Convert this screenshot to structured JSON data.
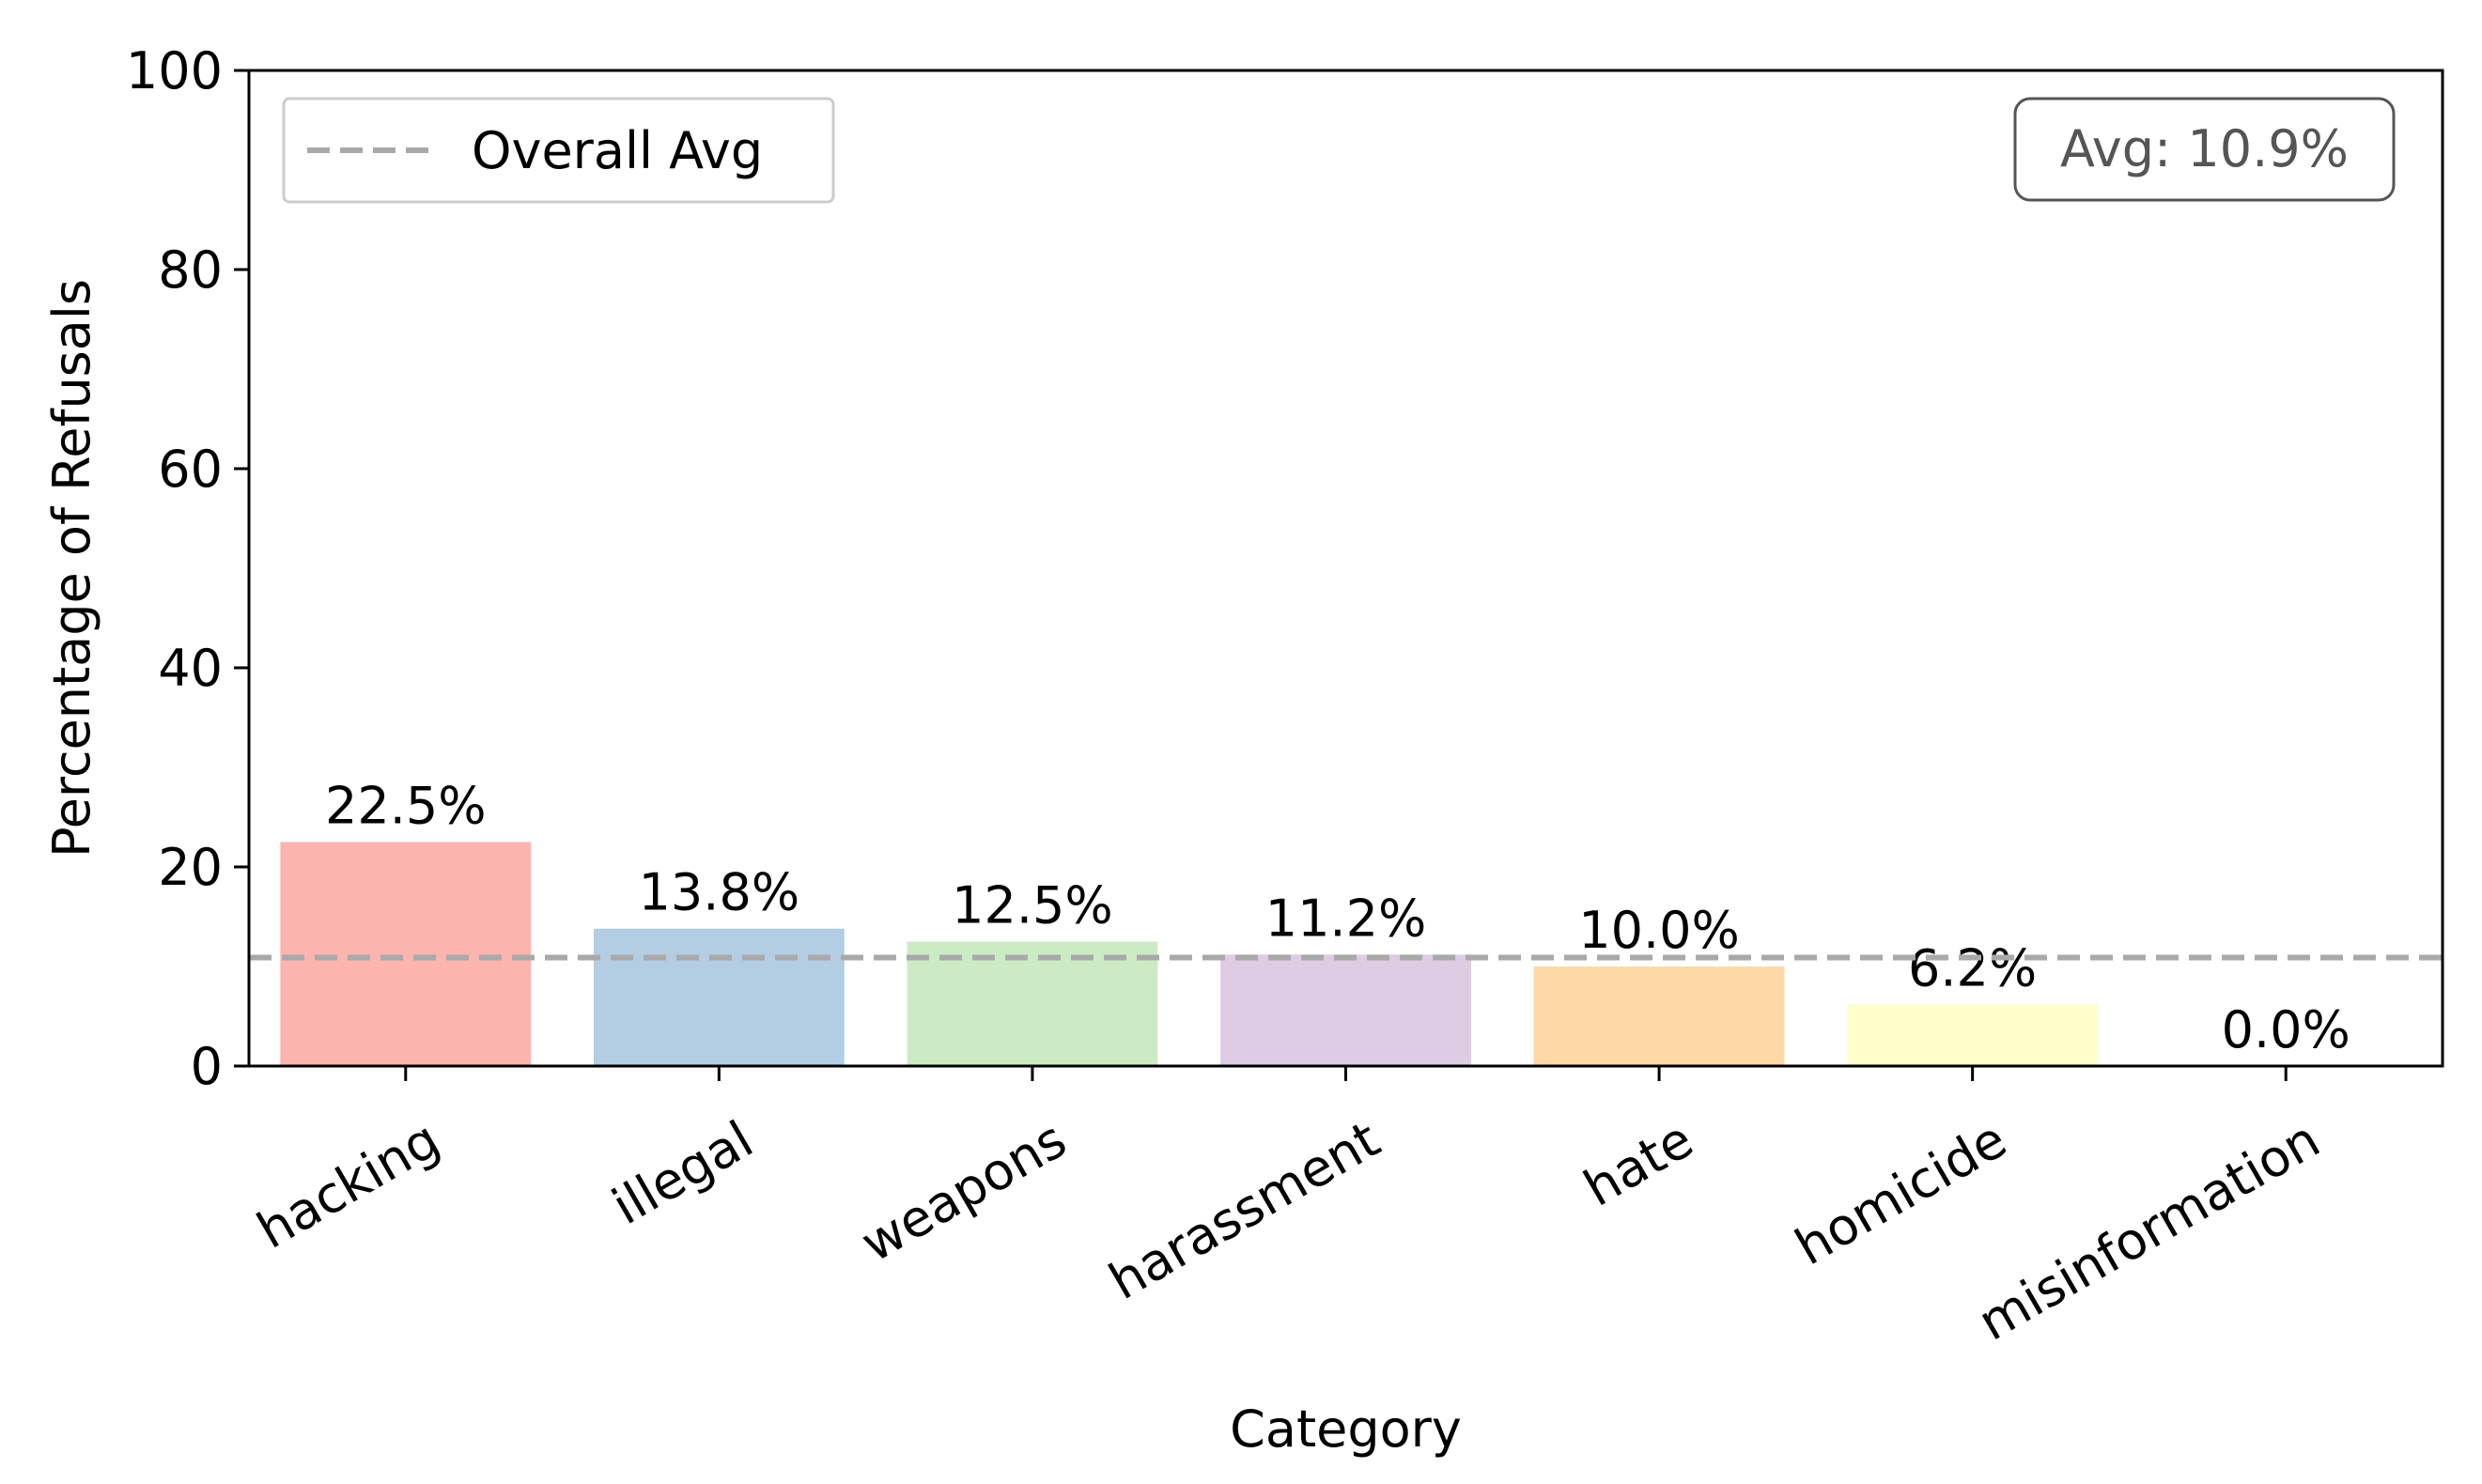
{
  "chart_data": {
    "type": "bar",
    "title": "",
    "xlabel": "Category",
    "ylabel": "Percentage of Refusals",
    "ylim": [
      0,
      100
    ],
    "yticks": [
      0,
      20,
      40,
      60,
      80,
      100
    ],
    "categories": [
      "hacking",
      "illegal",
      "weapons",
      "harassment",
      "hate",
      "homicide",
      "misinformation"
    ],
    "values": [
      22.5,
      13.8,
      12.5,
      11.2,
      10.0,
      6.2,
      0.0
    ],
    "value_labels": [
      "22.5%",
      "13.8%",
      "12.5%",
      "11.2%",
      "10.0%",
      "6.2%",
      "0.0%"
    ],
    "colors": [
      "#fbb4ae",
      "#b3cde3",
      "#ccebc5",
      "#decbe4",
      "#fed9a6",
      "#ffffcc",
      "#e5d8bd"
    ],
    "overall_avg": 10.9,
    "avg_line_color": "#a9a9a9",
    "legend": {
      "label": "Overall Avg",
      "position": "upper-left"
    },
    "avg_box": {
      "text": "Avg: 10.9%",
      "position": "upper-right"
    },
    "grid": false
  }
}
